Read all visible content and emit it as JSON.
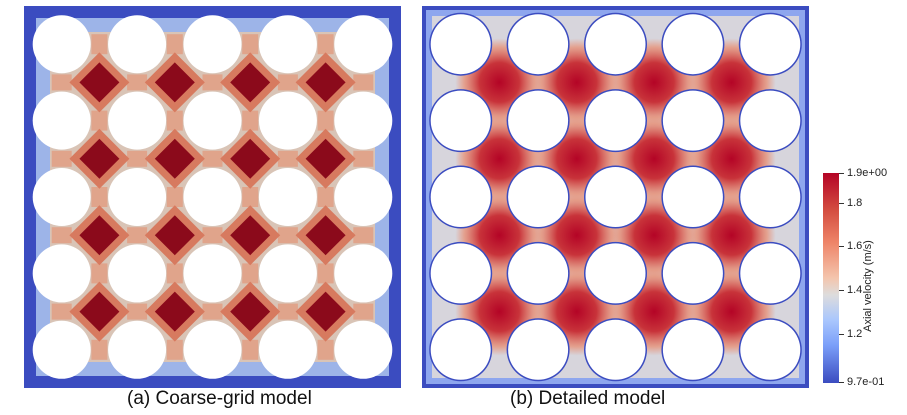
{
  "captions": {
    "a": "(a) Coarse-grid model",
    "b": "(b) Detailed model"
  },
  "colorbar": {
    "title": "Axial velocity (m/s)",
    "ticks": [
      "1.9e+00",
      "1.8",
      "1.6",
      "1.4",
      "1.2",
      "9.7e-01"
    ],
    "colors": {
      "max": "#b40426",
      "mid": "#dddcdc",
      "min": "#3b4cc0"
    }
  },
  "grid": {
    "rows": 5,
    "cols": 5
  },
  "palette": {
    "coarse_wall": "#3b4cc0",
    "coarse_edge": "#9db4e8",
    "coarse_gap": "#d9c4b6",
    "coarse_center": "#8b0a1b",
    "coarse_center_ring": "#d77a5f",
    "detailed_base": "#d7d5dc",
    "detailed_hot": "#b40426",
    "detailed_edge": "#3b4cc0"
  }
}
